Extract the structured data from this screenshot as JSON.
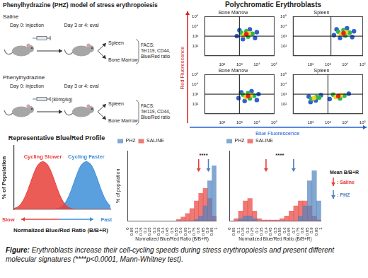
{
  "diagram": {
    "title": "Phenylhydrazine (PHZ) model of stress erythropoiesis",
    "arms": [
      {
        "label": "Saline",
        "steps": [
          "Day 0: injection",
          "Day 3 or 4: eval"
        ],
        "organs": [
          "Spleen",
          "Bone Marrow"
        ],
        "readout": [
          "FACS:",
          "Ter119, CD44,",
          "Blue/Red ratio"
        ]
      },
      {
        "label": "Phenylhydrazine",
        "dose": "(80mg/kg)",
        "steps": [
          "Day 0: injection",
          "Day 3 or 4: eval"
        ],
        "organs": [
          "Spleen",
          "Bone Marrow"
        ],
        "readout": [
          "FACS:",
          "Ter119, CD44,",
          "Blue/Red ratio"
        ]
      }
    ]
  },
  "flow_panel": {
    "title": "Polychromatic Erythroblasts",
    "y_label": "Red Fluorescence",
    "x_label": "Blue Fluorescence"
  },
  "chart_data": [
    {
      "type": "scatter",
      "title": "Bone Marrow",
      "log": true,
      "xlim": [
        10,
        100000
      ],
      "ylim": [
        10,
        100000
      ],
      "xticks": [
        {
          "value": 100,
          "label": "10²"
        },
        {
          "value": 1000,
          "label": "10³"
        },
        {
          "value": 10000,
          "label": "10⁴"
        },
        {
          "value": 100000,
          "label": "10⁵"
        }
      ],
      "yticks": [
        {
          "value": 100,
          "label": "10²"
        },
        {
          "value": 1000,
          "label": "10³"
        },
        {
          "value": 10000,
          "label": "10⁴"
        },
        {
          "value": 100000,
          "label": "10⁵"
        }
      ],
      "gates": {
        "x": 1000,
        "y": 1000
      },
      "x": [
        10000,
        708,
        3981,
        1585,
        7943,
        1000,
        5623,
        1259,
        3162,
        2512,
        3548,
        1778,
        2512
      ],
      "values": [
        2512,
        1000,
        5012,
        501,
        631,
        3981,
        1778,
        2239,
        891,
        3162,
        1995,
        1259,
        1585
      ],
      "colors": [
        "#2f5fd0",
        "#2f5fd0",
        "#2f5fd0",
        "#2f5fd0",
        "#2f5fd0",
        "#2f5fd0",
        "#2db84a",
        "#2db84a",
        "#2db84a",
        "#2db84a",
        "#f5d020",
        "#f5d020",
        "#e8201c"
      ]
    },
    {
      "type": "scatter",
      "title": "Spleen",
      "log": true,
      "xlim": [
        10,
        100000
      ],
      "ylim": [
        10,
        100000
      ],
      "xticks": [
        {
          "value": 100,
          "label": "10²"
        },
        {
          "value": 1000,
          "label": "10³"
        },
        {
          "value": 10000,
          "label": "10⁴"
        },
        {
          "value": 100000,
          "label": "10⁵"
        }
      ],
      "yticks": [
        {
          "value": 100,
          "label": "10²"
        },
        {
          "value": 1000,
          "label": "10³"
        },
        {
          "value": 10000,
          "label": "10⁴"
        },
        {
          "value": 100000,
          "label": "10⁵"
        }
      ],
      "gates": {
        "x": 1500,
        "y": 1000
      },
      "x": [
        31623,
        2239,
        12589,
        5012,
        25119,
        3162,
        17783,
        3981,
        10000,
        7943,
        11220,
        5623,
        7943
      ],
      "values": [
        3162,
        1259,
        6310,
        631,
        794,
        5012,
        2239,
        2818,
        1122,
        3981,
        2512,
        1585,
        1995
      ],
      "colors": [
        "#2f5fd0",
        "#2f5fd0",
        "#2f5fd0",
        "#2f5fd0",
        "#2f5fd0",
        "#2f5fd0",
        "#2db84a",
        "#2db84a",
        "#2db84a",
        "#2db84a",
        "#f5d020",
        "#f5d020",
        "#e8201c"
      ]
    },
    {
      "type": "scatter",
      "title": "Bone Marrow",
      "log": true,
      "xlim": [
        10,
        100000
      ],
      "ylim": [
        10,
        100000
      ],
      "xticks": [
        {
          "value": 100,
          "label": "10²"
        },
        {
          "value": 1000,
          "label": "10³"
        },
        {
          "value": 10000,
          "label": "10⁴"
        },
        {
          "value": 100000,
          "label": "10⁵"
        }
      ],
      "yticks": [
        {
          "value": 100,
          "label": "10²"
        },
        {
          "value": 1000,
          "label": "10³"
        },
        {
          "value": 10000,
          "label": "10⁴"
        },
        {
          "value": 100000,
          "label": "10⁵"
        }
      ],
      "gates": {
        "x": 1000,
        "y": 1000
      },
      "x": [
        12589,
        891,
        5012,
        1995,
        10000,
        1259,
        7079,
        1585,
        3981,
        3162,
        4467,
        2239,
        3162
      ],
      "values": [
        1000,
        398,
        1995,
        200,
        251,
        1585,
        708,
        891,
        355,
        1259,
        794,
        501,
        631
      ],
      "colors": [
        "#2f5fd0",
        "#2f5fd0",
        "#2f5fd0",
        "#2f5fd0",
        "#2f5fd0",
        "#2f5fd0",
        "#2db84a",
        "#2db84a",
        "#2db84a",
        "#2db84a",
        "#f5d020",
        "#f5d020",
        "#e8201c"
      ]
    },
    {
      "type": "scatter",
      "title": "Spleen",
      "log": true,
      "xlim": [
        10,
        100000
      ],
      "ylim": [
        10,
        100000
      ],
      "xticks": [
        {
          "value": 100,
          "label": "10²"
        },
        {
          "value": 1000,
          "label": "10³"
        },
        {
          "value": 10000,
          "label": "10⁴"
        },
        {
          "value": 100000,
          "label": "10⁵"
        }
      ],
      "yticks": [
        {
          "value": 100,
          "label": "10²"
        },
        {
          "value": 1000,
          "label": "10³"
        },
        {
          "value": 10000,
          "label": "10⁴"
        },
        {
          "value": 100000,
          "label": "10⁵"
        }
      ],
      "gates": {
        "x": 1000,
        "y": 1000
      },
      "x": [
        79,
        200,
        100,
        398,
        15849,
        1259,
        224,
        112,
        316,
        8913,
        1995,
        5012,
        158,
        5623,
        2818,
        3981
      ],
      "values": [
        562,
        224,
        158,
        794,
        1122,
        316,
        501,
        316,
        447,
        708,
        891,
        355,
        398,
        794,
        501,
        631
      ],
      "colors": [
        "#2f5fd0",
        "#2f5fd0",
        "#2f5fd0",
        "#2f5fd0",
        "#2f5fd0",
        "#2f5fd0",
        "#2db84a",
        "#2db84a",
        "#2db84a",
        "#2db84a",
        "#2db84a",
        "#2db84a",
        "#f5d020",
        "#f5d020",
        "#f5d020",
        "#e8201c"
      ]
    },
    {
      "type": "area",
      "title": "Representative Blue/Red Profile",
      "x_label": "Normalized Blue/Red Ratio (B/B+R)",
      "y_label": "% of Population",
      "x": [
        0,
        1,
        2,
        3,
        4,
        5,
        6,
        7,
        8,
        9,
        10,
        11,
        12,
        13,
        14,
        15,
        16,
        17,
        18,
        19,
        20
      ],
      "xlim": [
        0,
        20
      ],
      "ylim": [
        0,
        8
      ],
      "tick_labels": false,
      "series": [
        {
          "name": "Cycling Slower",
          "color": "#e8403a",
          "values": [
            0.1,
            0.4,
            1.2,
            2.6,
            4.3,
            5.6,
            6,
            5.6,
            4.3,
            2.6,
            1.2,
            0.4,
            0.1,
            0,
            0,
            0,
            0,
            0,
            0,
            0,
            0
          ]
        },
        {
          "name": "Cycling Faster",
          "color": "#3d8fd9",
          "values": [
            0,
            0,
            0,
            0,
            0,
            0,
            0,
            0,
            0,
            0.1,
            0.4,
            1.2,
            2.6,
            4.3,
            5.6,
            6,
            5.6,
            4.3,
            2.6,
            1.2,
            0.4
          ]
        }
      ],
      "annotations": [
        "Slow",
        "Fast"
      ]
    },
    {
      "type": "histogram",
      "x_label": "Normalized Blue/Red Ratio (B/B+R)",
      "y_label": "% of population",
      "bins": [
        0,
        0.05,
        0.1,
        0.15,
        0.2,
        0.25,
        0.3,
        0.35,
        0.4,
        0.45,
        0.5,
        0.55,
        0.6,
        0.65,
        0.7,
        0.75,
        0.8,
        0.85,
        0.9,
        0.95,
        1
      ],
      "xlim": [
        0,
        1
      ],
      "xticks": [
        0,
        0.05,
        0.1,
        0.15,
        0.2,
        0.25,
        0.3,
        0.35,
        0.4,
        0.45,
        0.5,
        0.55,
        0.6,
        0.65,
        0.7,
        0.75,
        0.8,
        0.85,
        0.9,
        0.95,
        1
      ],
      "ylim": [
        0,
        14
      ],
      "tick_labels": "x",
      "legend": "upper left",
      "series": [
        {
          "name": "PHZ",
          "color": "#4f81bd",
          "values": [
            0,
            0,
            0,
            0,
            0,
            0,
            0,
            0,
            0,
            0,
            0,
            0,
            0,
            0,
            0,
            0.3,
            1,
            3,
            8,
            11
          ],
          "mean": 0.91
        },
        {
          "name": "SALINE",
          "color": "#e8403a",
          "values": [
            0,
            0,
            0,
            0,
            0,
            0,
            0,
            0,
            0,
            0,
            0,
            0.3,
            0.8,
            1.5,
            2.5,
            4,
            5.5,
            6.5,
            4.5,
            1
          ],
          "mean": 0.8
        }
      ],
      "annotations": [
        "****"
      ]
    },
    {
      "type": "histogram",
      "x_label": "Normalized Blue/Red Ratio (B/B+R)",
      "bins": [
        0,
        0.05,
        0.1,
        0.15,
        0.2,
        0.25,
        0.3,
        0.35,
        0.4,
        0.45,
        0.5,
        0.55,
        0.6,
        0.65,
        0.7,
        0.75,
        0.8,
        0.85,
        0.9,
        0.95,
        1
      ],
      "xlim": [
        0,
        1
      ],
      "xticks": [
        0,
        0.05,
        0.1,
        0.15,
        0.2,
        0.25,
        0.3,
        0.35,
        0.4,
        0.45,
        0.5,
        0.55,
        0.6,
        0.65,
        0.7,
        0.75,
        0.8,
        0.85,
        0.9,
        0.95,
        1
      ],
      "ylim": [
        0,
        14
      ],
      "tick_labels": "x",
      "legend": "upper left",
      "series": [
        {
          "name": "PHZ",
          "color": "#4f81bd",
          "values": [
            0,
            0,
            0.5,
            1,
            1,
            0.5,
            0,
            0,
            0,
            0,
            0,
            0,
            0,
            0,
            0,
            1,
            3,
            8,
            10,
            4
          ],
          "mean": 0.7
        },
        {
          "name": "SALINE",
          "color": "#e8403a",
          "values": [
            0,
            0.5,
            2,
            4,
            4.5,
            2,
            0.5,
            0.2,
            0.2,
            0.2,
            0.2,
            0.5,
            1,
            2,
            3,
            4,
            4,
            3,
            1,
            0.2
          ],
          "mean": 0.4
        }
      ],
      "annotations": [
        "****"
      ]
    }
  ],
  "mean_legend": {
    "title": "Mean B/B+R",
    "entries": [
      {
        "label": ": Saline",
        "color": "#e8403a"
      },
      {
        "label": ": PHZ",
        "color": "#4f81bd"
      }
    ]
  },
  "caption": {
    "lead": "Figure:",
    "text": "Erythroblasts increase their cell-cycling speeds during stress erythropoiesis and present different molecular signatures (****p<0.0001, Mann-Whitney test)."
  }
}
